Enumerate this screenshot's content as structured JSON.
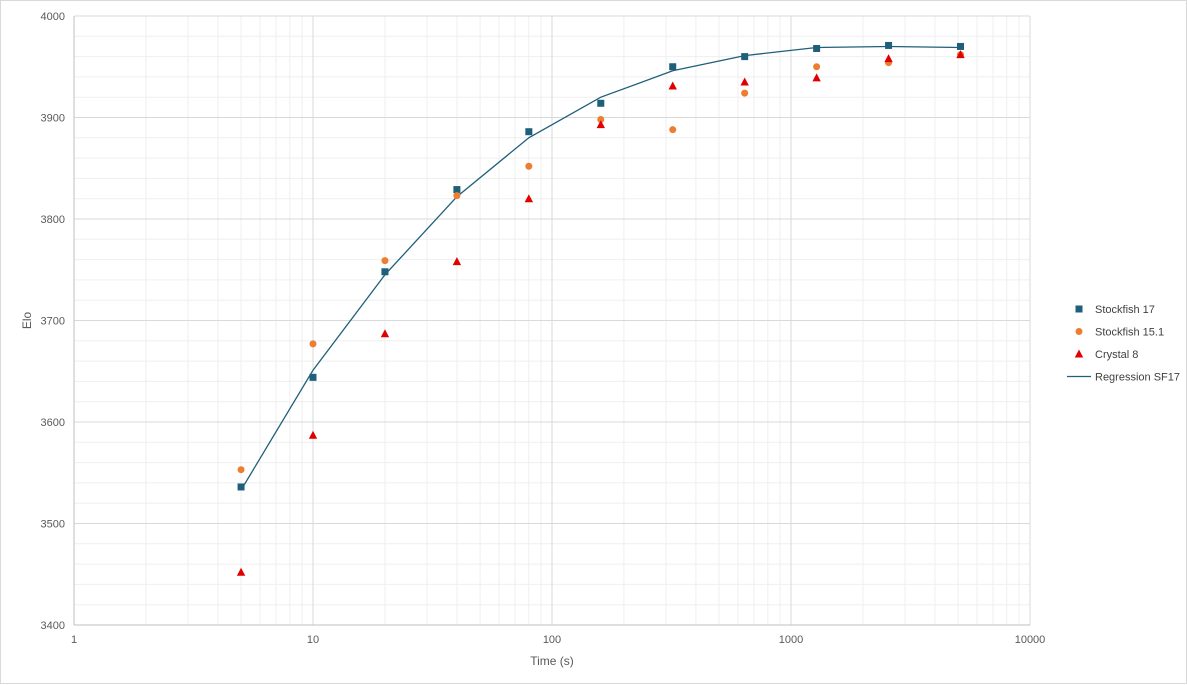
{
  "chart_data": {
    "type": "scatter",
    "xlabel": "Time (s)",
    "ylabel": "Elo",
    "xscale": "log",
    "xlim": [
      1,
      10000
    ],
    "ylim": [
      3400,
      4000
    ],
    "xticks": [
      "1",
      "10",
      "100",
      "1000",
      "10000"
    ],
    "yticks": [
      "3400",
      "3500",
      "3600",
      "3700",
      "3800",
      "3900",
      "4000"
    ],
    "grid": true,
    "legend_position": "right",
    "series": [
      {
        "name": "Stockfish 17",
        "marker": "square",
        "color": "#1f5f7a",
        "x": [
          5,
          10,
          20,
          40,
          80,
          160,
          320,
          640,
          1280,
          2560,
          5120
        ],
        "y": [
          3536,
          3644,
          3748,
          3829,
          3886,
          3914,
          3950,
          3960,
          3968,
          3971,
          3970
        ]
      },
      {
        "name": "Stockfish 15.1",
        "marker": "circle",
        "color": "#ed7d31",
        "x": [
          5,
          10,
          20,
          40,
          80,
          160,
          320,
          640,
          1280,
          2560,
          5120
        ],
        "y": [
          3553,
          3677,
          3759,
          3823,
          3852,
          3898,
          3888,
          3924,
          3950,
          3954,
          3962
        ]
      },
      {
        "name": "Crystal 8",
        "marker": "triangle",
        "color": "#e00000",
        "x": [
          5,
          10,
          20,
          40,
          80,
          160,
          320,
          640,
          1280,
          2560,
          5120
        ],
        "y": [
          3452,
          3587,
          3687,
          3758,
          3820,
          3893,
          3931,
          3935,
          3939,
          3958,
          3962
        ]
      },
      {
        "name": "Regression SF17",
        "marker": "line",
        "color": "#1f5f7a",
        "x": [
          5,
          10,
          20,
          40,
          80,
          160,
          320,
          640,
          1280,
          2560,
          5120
        ],
        "y": [
          3533,
          3651,
          3745,
          3822,
          3880,
          3920,
          3946,
          3961,
          3969,
          3970,
          3969
        ]
      }
    ]
  }
}
